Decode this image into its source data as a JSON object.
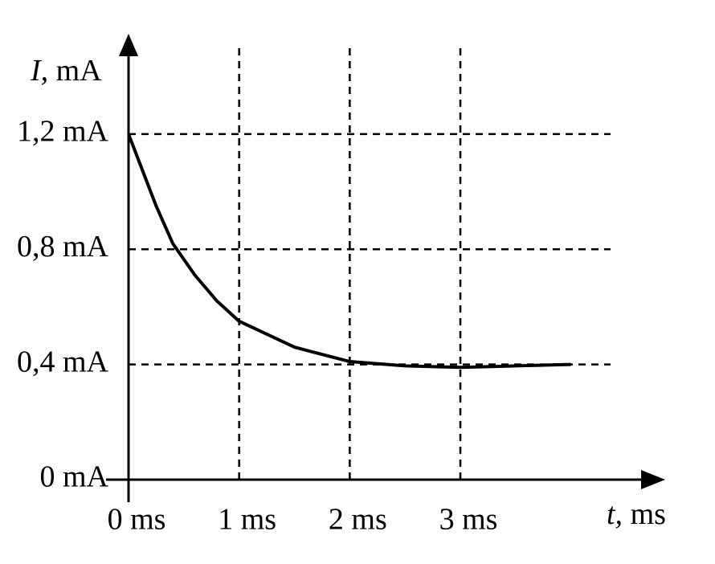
{
  "chart_data": {
    "type": "line",
    "y_label": "I, mA",
    "x_label": "t, ms",
    "x": [
      0,
      0.25,
      0.4,
      0.6,
      0.8,
      1,
      1.5,
      2,
      2.5,
      3,
      3.5,
      4
    ],
    "series": [
      {
        "color": "#000000",
        "values": [
          1.2,
          0.95,
          0.82,
          0.71,
          0.62,
          0.55,
          0.46,
          0.41,
          0.395,
          0.39,
          0.395,
          0.4
        ]
      }
    ],
    "xlim": [
      0,
      4.83
    ],
    "ylim": [
      0,
      1.54
    ],
    "xticks": [
      {
        "value": 0,
        "label": "0 ms"
      },
      {
        "value": 1,
        "label": "1 ms"
      },
      {
        "value": 2,
        "label": "2 ms"
      },
      {
        "value": 3,
        "label": "3 ms"
      }
    ],
    "yticks": [
      {
        "value": 0,
        "label": "0 mA"
      },
      {
        "value": 0.4,
        "label": "0,4 mA"
      },
      {
        "value": 0.8,
        "label": "0,8 mA"
      },
      {
        "value": 1.2,
        "label": "1,2 mA"
      }
    ],
    "grid": true
  }
}
